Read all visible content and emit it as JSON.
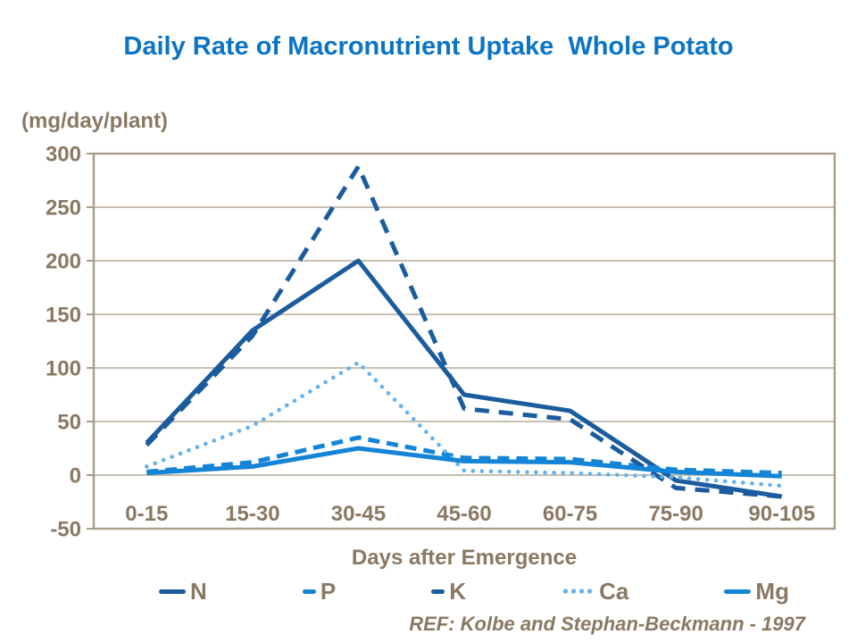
{
  "title": "Daily Rate of Macronutrient Uptake  Whole Potato",
  "reference": "REF: Kolbe and Stephan-Beckmann - 1997",
  "colors": {
    "title_blue": "#0b74c4",
    "axis_text_brown": "#8a7863",
    "gridline": "#b5aa99",
    "frame": "#a89d8b",
    "dark_blue": "#1b5c9e",
    "mid_blue": "#1484d7",
    "light_blue": "#66b2ec"
  },
  "chart_data": {
    "type": "line",
    "title": "Daily Rate of Macronutrient Uptake  Whole Potato",
    "xlabel": "Days after Emergence",
    "ylabel": "(mg/day/plant)",
    "ylim": [
      -50,
      300
    ],
    "yticks": [
      300,
      250,
      200,
      150,
      100,
      50,
      0,
      -50
    ],
    "grid": true,
    "legend_position": "bottom",
    "categories": [
      "0-15",
      "15-30",
      "30-45",
      "45-60",
      "60-75",
      "75-90",
      "90-105"
    ],
    "series": [
      {
        "name": "N",
        "color": "#1b5c9e",
        "style": "solid",
        "values": [
          30,
          135,
          200,
          75,
          60,
          -5,
          -20
        ]
      },
      {
        "name": "P",
        "color": "#1484d7",
        "style": "dashed",
        "values": [
          3,
          12,
          35,
          16,
          15,
          5,
          2
        ]
      },
      {
        "name": "K",
        "color": "#1b5c9e",
        "style": "dashed",
        "values": [
          28,
          130,
          288,
          62,
          52,
          -12,
          -20
        ]
      },
      {
        "name": "Ca",
        "color": "#66b2ec",
        "style": "dotted",
        "values": [
          8,
          46,
          105,
          4,
          2,
          -2,
          -10
        ]
      },
      {
        "name": "Mg",
        "color": "#1484d7",
        "style": "solid",
        "values": [
          2,
          8,
          25,
          13,
          12,
          3,
          -1
        ]
      }
    ]
  }
}
